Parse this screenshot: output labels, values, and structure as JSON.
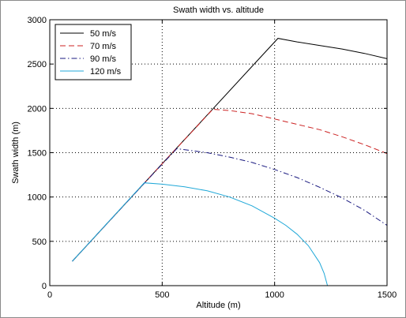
{
  "chart_data": {
    "type": "line",
    "title": "Swath width vs. altitude",
    "xlabel": "Altitude (m)",
    "ylabel": "Swath width (m)",
    "xlim": [
      0,
      1500
    ],
    "ylim": [
      0,
      3000
    ],
    "xticks": [
      0,
      500,
      1000,
      1500
    ],
    "yticks": [
      0,
      500,
      1000,
      1500,
      2000,
      2500,
      3000
    ],
    "grid": true,
    "legend_position": "top-left",
    "series": [
      {
        "name": "50 m/s",
        "color": "#000000",
        "style": "solid",
        "x": [
          100,
          300,
          500,
          700,
          900,
          1015,
          1100,
          1200,
          1300,
          1400,
          1500
        ],
        "y": [
          275,
          825,
          1375,
          1925,
          2475,
          2790,
          2750,
          2710,
          2670,
          2620,
          2560
        ]
      },
      {
        "name": "70 m/s",
        "color": "#cc2222",
        "style": "dashed",
        "x": [
          100,
          300,
          500,
          725,
          800,
          900,
          1000,
          1100,
          1200,
          1300,
          1400,
          1500
        ],
        "y": [
          275,
          825,
          1375,
          1990,
          1975,
          1940,
          1880,
          1820,
          1760,
          1680,
          1590,
          1490
        ]
      },
      {
        "name": "90 m/s",
        "color": "#1a1a80",
        "style": "dashdot",
        "x": [
          100,
          300,
          470,
          565,
          700,
          800,
          900,
          1000,
          1100,
          1200,
          1300,
          1400,
          1500
        ],
        "y": [
          275,
          825,
          1290,
          1545,
          1500,
          1450,
          1390,
          1310,
          1220,
          1110,
          990,
          850,
          680
        ]
      },
      {
        "name": "120 m/s",
        "color": "#20a8d8",
        "style": "solid",
        "x": [
          100,
          250,
          420,
          500,
          600,
          700,
          800,
          900,
          1000,
          1050,
          1100,
          1150,
          1200,
          1220,
          1235,
          1300,
          1400,
          1500
        ],
        "y": [
          275,
          690,
          1160,
          1145,
          1115,
          1070,
          1000,
          900,
          760,
          680,
          580,
          450,
          260,
          140,
          0,
          0,
          0,
          0
        ]
      }
    ]
  }
}
